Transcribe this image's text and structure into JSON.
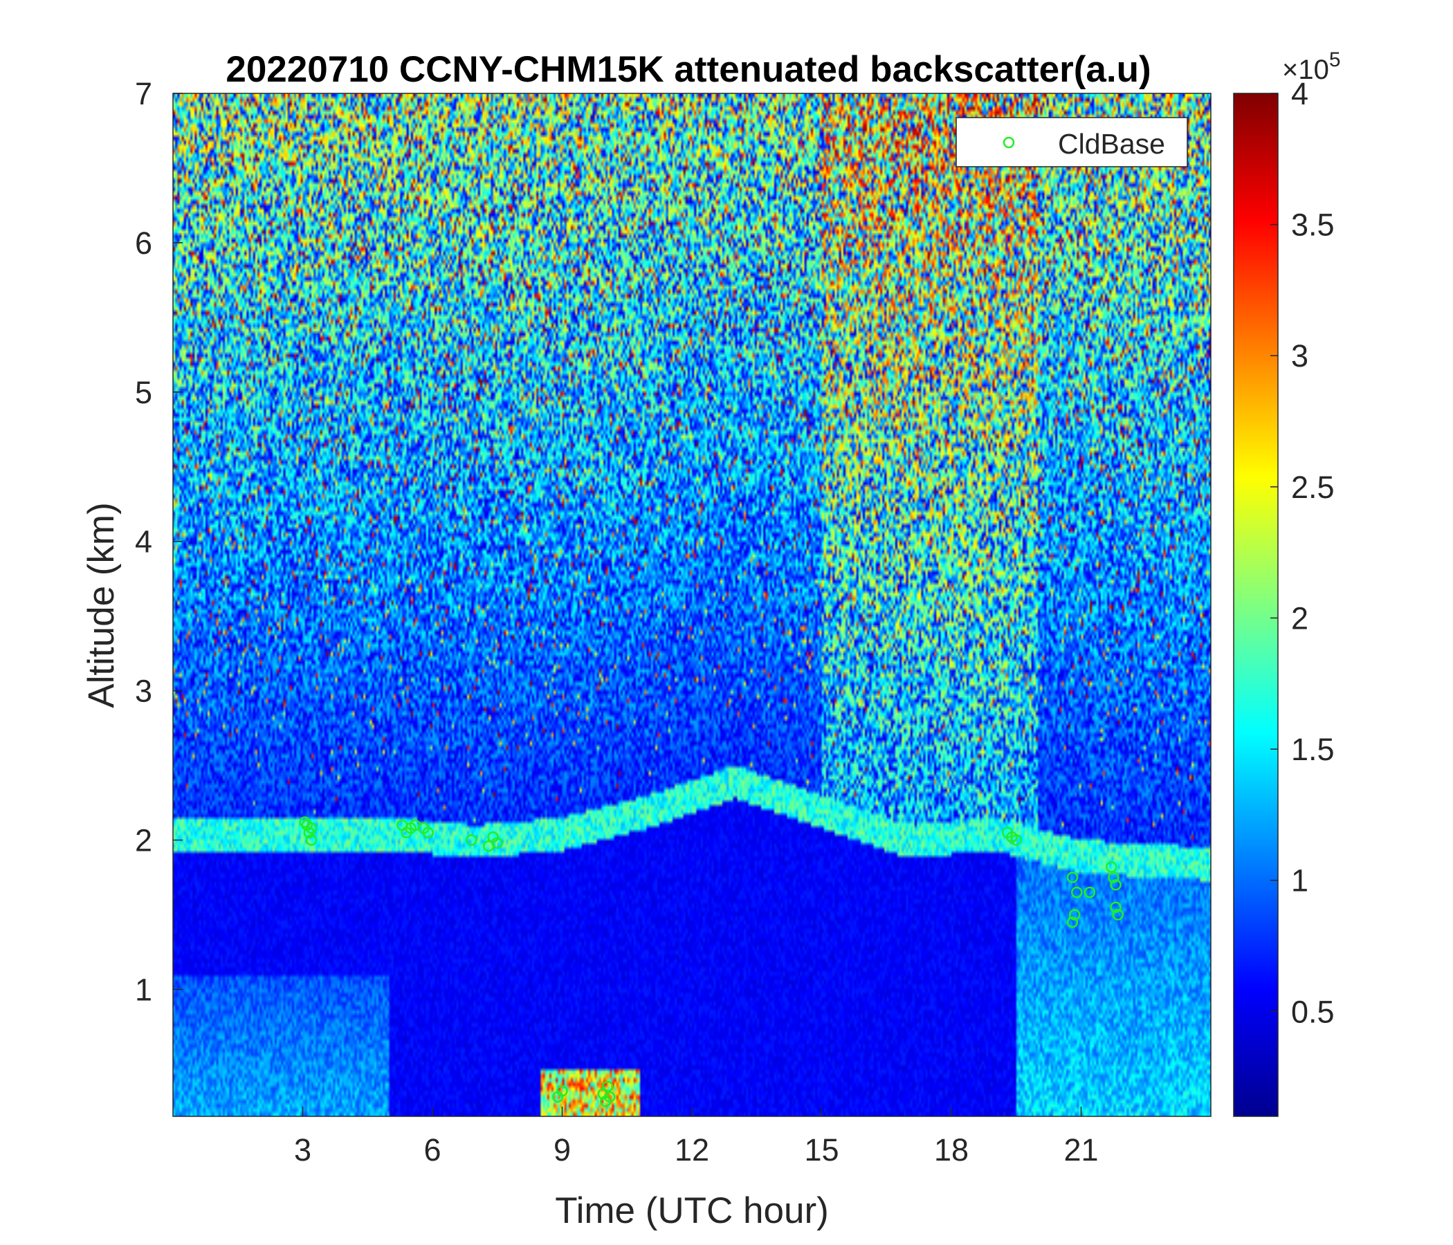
{
  "chart_data": {
    "type": "heatmap",
    "title": "20220710 CCNY-CHM15K attenuated backscatter(a.u)",
    "xlabel": "Time (UTC hour)",
    "ylabel": "Altitude (km)",
    "xlim": [
      0,
      24
    ],
    "ylim": [
      0.15,
      7
    ],
    "xticks": [
      3,
      6,
      9,
      12,
      15,
      18,
      21
    ],
    "yticks": [
      1,
      2,
      3,
      4,
      5,
      6,
      7
    ],
    "colormap": "jet",
    "colorbar": {
      "range": [
        0.1,
        4
      ],
      "ticks": [
        "0.5",
        "1",
        "1.5",
        "2",
        "2.5",
        "3",
        "3.5",
        "4"
      ],
      "tick_values": [
        0.5,
        1,
        1.5,
        2,
        2.5,
        3,
        3.5,
        4
      ],
      "exponent_prefix": "×10",
      "exponent": "5"
    },
    "legend": {
      "placement": "top-right",
      "entries": [
        {
          "name": "CldBase",
          "marker": "circle",
          "color": "#22ee22"
        }
      ]
    },
    "features": {
      "boundary_layer_top_km": [
        [
          0,
          2.05
        ],
        [
          3,
          2.05
        ],
        [
          5,
          2.05
        ],
        [
          7,
          2.0
        ],
        [
          9,
          2.05
        ],
        [
          11,
          2.2
        ],
        [
          13,
          2.4
        ],
        [
          15,
          2.2
        ],
        [
          17,
          2.0
        ],
        [
          19,
          2.05
        ],
        [
          21,
          1.9
        ],
        [
          24,
          1.85
        ]
      ],
      "near_surface_aerosol": [
        {
          "x_range": [
            0,
            5
          ],
          "top_km": 1.1,
          "level": 1.6
        },
        {
          "x_range": [
            19.5,
            24
          ],
          "top_km": 1.9,
          "level": 1.8
        }
      ],
      "fog_layer": {
        "x_range": [
          8.5,
          10.8
        ],
        "top_km": 0.45,
        "level": 3.5
      }
    },
    "series": [
      {
        "name": "CldBase",
        "type": "scatter",
        "x": [
          3.1,
          3.2,
          3.15,
          3.05,
          3.2,
          5.3,
          5.4,
          5.5,
          5.6,
          5.8,
          5.9,
          6.9,
          7.4,
          7.5,
          7.3,
          9.0,
          8.9,
          9.95,
          10.05,
          10.1,
          10.0,
          19.3,
          19.4,
          19.5,
          20.8,
          20.9,
          20.85,
          20.8,
          21.2,
          21.7,
          21.75,
          21.8,
          21.8,
          21.85
        ],
        "y": [
          2.1,
          2.0,
          2.05,
          2.12,
          2.08,
          2.1,
          2.05,
          2.08,
          2.1,
          2.08,
          2.05,
          2.0,
          2.02,
          1.98,
          1.96,
          0.32,
          0.28,
          0.3,
          0.35,
          0.28,
          0.25,
          2.05,
          2.02,
          2.0,
          1.75,
          1.65,
          1.5,
          1.45,
          1.65,
          1.82,
          1.75,
          1.7,
          1.55,
          1.5
        ]
      }
    ]
  }
}
